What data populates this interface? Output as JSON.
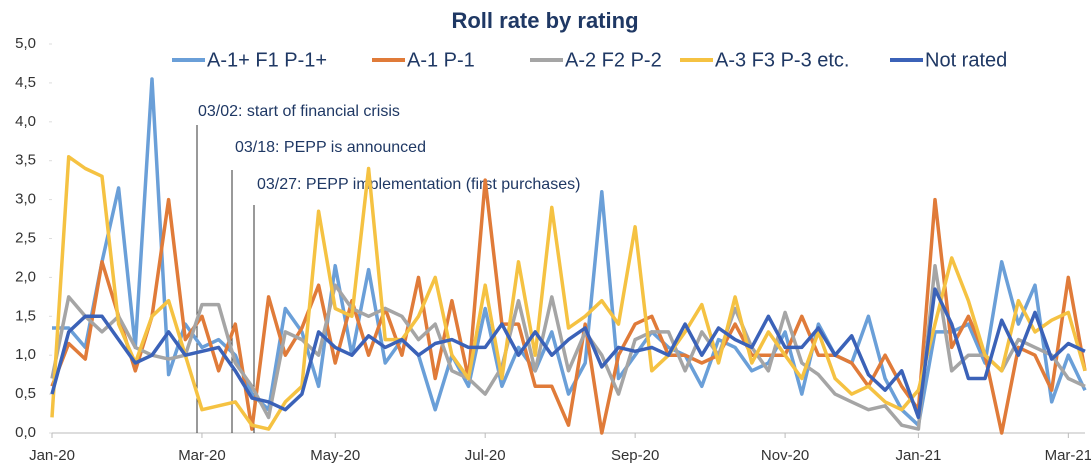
{
  "chart_data": {
    "type": "line",
    "title": "Roll rate by rating",
    "categories": [
      "Jan-20",
      null,
      null,
      null,
      null,
      null,
      null,
      null,
      null,
      "Mar-20",
      null,
      null,
      null,
      null,
      null,
      null,
      null,
      "May-20",
      null,
      null,
      null,
      null,
      null,
      null,
      null,
      null,
      "Jul-20",
      null,
      null,
      null,
      null,
      null,
      null,
      null,
      null,
      "Sep-20",
      null,
      null,
      null,
      null,
      null,
      null,
      null,
      null,
      "Nov-20",
      null,
      null,
      null,
      null,
      null,
      null,
      null,
      "Jan-21",
      null,
      null,
      null,
      null,
      null,
      null,
      null,
      null,
      "Mar-21",
      null
    ],
    "series": [
      {
        "name": "A-1+ F1 P-1+",
        "color": "#6a9fd8",
        "values": [
          1.35,
          1.35,
          1.1,
          2.2,
          3.15,
          1.1,
          4.55,
          0.75,
          1.4,
          1.1,
          1.2,
          1.0,
          0.5,
          0.3,
          1.6,
          1.3,
          0.6,
          2.15,
          1.0,
          2.1,
          0.9,
          1.2,
          1.0,
          0.3,
          1.0,
          0.6,
          1.6,
          0.6,
          1.1,
          0.8,
          1.3,
          0.5,
          0.9,
          3.1,
          0.7,
          1.0,
          1.3,
          1.1,
          1.0,
          0.6,
          1.2,
          1.1,
          0.8,
          0.9,
          1.3,
          0.5,
          1.4,
          1.0,
          0.9,
          1.5,
          0.7,
          0.3,
          0.1,
          1.3,
          1.3,
          1.4,
          0.9,
          2.2,
          1.4,
          1.9,
          0.4,
          1.0,
          0.55
        ]
      },
      {
        "name": "A-1 P-1",
        "color": "#e07b39",
        "values": [
          0.6,
          1.15,
          0.95,
          2.2,
          1.5,
          0.8,
          1.5,
          3.0,
          1.2,
          1.5,
          0.8,
          1.4,
          0.05,
          1.75,
          1.0,
          1.35,
          1.9,
          0.9,
          1.7,
          1.0,
          1.6,
          1.0,
          2.0,
          0.7,
          1.7,
          0.7,
          3.25,
          1.4,
          1.4,
          0.6,
          0.6,
          0.1,
          1.4,
          0.0,
          1.0,
          1.4,
          1.5,
          1.0,
          1.0,
          0.9,
          1.0,
          1.4,
          1.0,
          1.0,
          1.0,
          1.5,
          1.0,
          1.0,
          0.9,
          0.6,
          1.0,
          0.6,
          0.3,
          3.0,
          1.1,
          1.5,
          1.0,
          0.0,
          1.1,
          1.0,
          0.55,
          2.0,
          0.8
        ]
      },
      {
        "name": "A-2 F2 P-2",
        "color": "#a5a5a5",
        "values": [
          0.7,
          1.75,
          1.5,
          1.3,
          1.5,
          1.1,
          1.0,
          0.95,
          1.0,
          1.65,
          1.65,
          0.9,
          0.6,
          0.2,
          1.3,
          1.2,
          1.0,
          1.9,
          1.6,
          1.5,
          1.6,
          1.5,
          1.2,
          1.4,
          0.8,
          0.7,
          0.5,
          0.85,
          1.7,
          0.8,
          1.75,
          0.8,
          1.3,
          1.0,
          0.5,
          1.2,
          1.3,
          1.3,
          0.8,
          1.3,
          1.0,
          1.6,
          1.1,
          0.8,
          1.55,
          0.9,
          0.75,
          0.5,
          0.4,
          0.3,
          0.35,
          0.1,
          0.05,
          2.15,
          0.8,
          1.0,
          1.0,
          0.8,
          1.2,
          1.1,
          1.0,
          0.7,
          0.6
        ]
      },
      {
        "name": "A-3 F3 P-3 etc.",
        "color": "#f5c242",
        "values": [
          0.2,
          3.55,
          3.4,
          3.3,
          1.4,
          0.9,
          1.5,
          1.7,
          1.0,
          0.3,
          0.35,
          0.4,
          0.1,
          0.05,
          0.4,
          0.6,
          2.85,
          1.6,
          1.5,
          3.4,
          1.2,
          1.2,
          1.5,
          2.0,
          1.0,
          0.7,
          1.9,
          0.7,
          2.2,
          1.0,
          2.9,
          1.35,
          1.5,
          1.7,
          1.4,
          2.65,
          0.8,
          1.0,
          1.3,
          1.65,
          0.9,
          1.75,
          0.9,
          1.3,
          1.0,
          0.7,
          1.3,
          0.7,
          0.5,
          0.6,
          0.4,
          0.3,
          0.55,
          1.4,
          2.25,
          1.7,
          1.0,
          0.8,
          1.7,
          1.3,
          1.45,
          1.55,
          0.8
        ]
      },
      {
        "name": "Not rated",
        "color": "#3b62b8",
        "values": [
          0.5,
          1.3,
          1.5,
          1.5,
          1.2,
          0.9,
          1.0,
          1.3,
          1.0,
          1.05,
          1.1,
          0.8,
          0.45,
          0.4,
          0.3,
          0.5,
          1.3,
          1.1,
          1.0,
          1.25,
          1.1,
          1.2,
          1.0,
          1.15,
          1.2,
          1.1,
          1.1,
          1.4,
          1.0,
          1.3,
          1.0,
          1.2,
          1.35,
          0.85,
          1.1,
          1.05,
          1.1,
          1.0,
          1.4,
          1.0,
          1.35,
          1.2,
          1.1,
          1.5,
          1.1,
          1.1,
          1.35,
          1.0,
          1.25,
          0.75,
          0.55,
          0.8,
          0.2,
          1.85,
          1.4,
          0.7,
          0.7,
          1.45,
          1.0,
          1.55,
          0.95,
          1.15,
          1.05
        ]
      }
    ],
    "ylim": [
      0,
      5
    ],
    "yticks": [
      {
        "value": 0,
        "label": "0,0"
      },
      {
        "value": 0.5,
        "label": "0,5"
      },
      {
        "value": 1,
        "label": "1,0"
      },
      {
        "value": 1.5,
        "label": "1,5"
      },
      {
        "value": 2,
        "label": "2,0"
      },
      {
        "value": 2.5,
        "label": "2,5"
      },
      {
        "value": 3,
        "label": "3,0"
      },
      {
        "value": 3.5,
        "label": "3,5"
      },
      {
        "value": 4,
        "label": "4,0"
      },
      {
        "value": 4.5,
        "label": "4,5"
      },
      {
        "value": 5,
        "label": "5,0"
      }
    ],
    "annotations": [
      "03/02: start of financial crisis",
      "03/18:  PEPP is announced",
      "03/27: PEPP implementation (first purchases)"
    ],
    "grid": false,
    "legend": "top"
  }
}
